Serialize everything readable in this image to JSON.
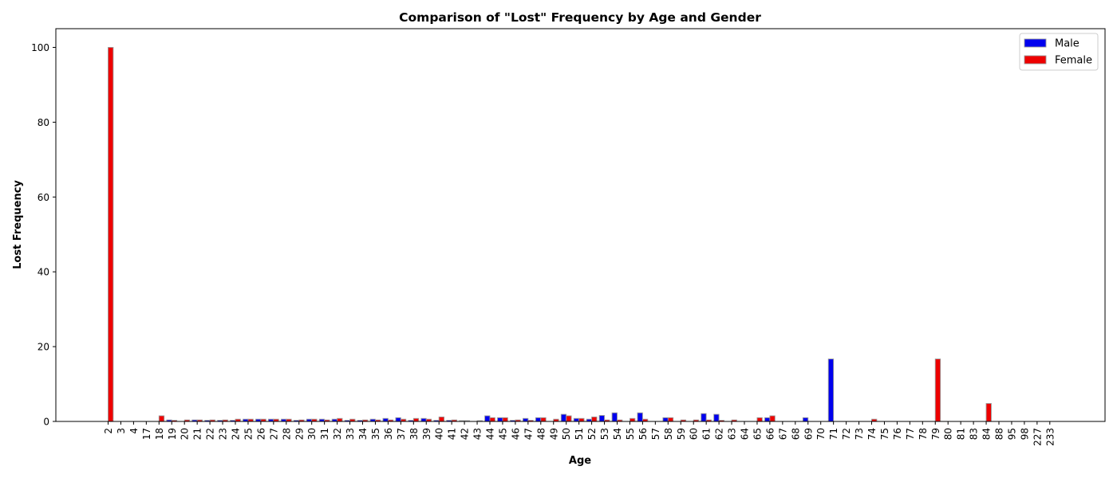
{
  "chart_data": {
    "type": "bar",
    "title": "Comparison of \"Lost\" Frequency by Age and Gender",
    "xlabel": "Age",
    "ylabel": "Lost Frequency",
    "ylim": [
      0,
      105
    ],
    "yticks": [
      0,
      20,
      40,
      60,
      80,
      100
    ],
    "grid": false,
    "legend": "top-right",
    "categories": [
      "2",
      "3",
      "4",
      "17",
      "18",
      "19",
      "20",
      "21",
      "22",
      "23",
      "24",
      "25",
      "26",
      "27",
      "28",
      "29",
      "30",
      "31",
      "32",
      "33",
      "34",
      "35",
      "36",
      "37",
      "38",
      "39",
      "40",
      "41",
      "42",
      "43",
      "44",
      "45",
      "46",
      "47",
      "48",
      "49",
      "50",
      "51",
      "52",
      "53",
      "54",
      "55",
      "56",
      "57",
      "58",
      "59",
      "60",
      "61",
      "62",
      "63",
      "64",
      "65",
      "66",
      "67",
      "68",
      "69",
      "70",
      "71",
      "72",
      "73",
      "74",
      "75",
      "76",
      "77",
      "78",
      "79",
      "80",
      "81",
      "83",
      "84",
      "88",
      "95",
      "98",
      "227",
      "233"
    ],
    "series": [
      {
        "name": "Male",
        "color": "#0000ee",
        "values": [
          0,
          0,
          0,
          0,
          0,
          0.4,
          0,
          0.4,
          0.3,
          0.3,
          0.3,
          0.6,
          0.6,
          0.6,
          0.6,
          0.3,
          0.6,
          0.6,
          0.6,
          0.3,
          0.3,
          0.6,
          0.8,
          1.0,
          0.3,
          0.8,
          0.3,
          0.3,
          0.2,
          0,
          1.5,
          1.0,
          0.3,
          0.8,
          1.0,
          0,
          1.9,
          0.8,
          0.6,
          1.6,
          2.3,
          0,
          2.3,
          0,
          1.0,
          0,
          0,
          2.1,
          1.9,
          0,
          0,
          0,
          1.0,
          0,
          0,
          1.0,
          0,
          16.7,
          0,
          0,
          0,
          0,
          0,
          0,
          0,
          0,
          0,
          0,
          0,
          0,
          0,
          0,
          0,
          0,
          0
        ]
      },
      {
        "name": "Female",
        "color": "#ee0000",
        "values": [
          100,
          0,
          0,
          0,
          1.5,
          0.3,
          0.4,
          0.4,
          0.4,
          0.4,
          0.6,
          0.6,
          0.6,
          0.6,
          0.6,
          0.4,
          0.6,
          0.4,
          0.8,
          0.6,
          0.4,
          0.4,
          0.4,
          0.6,
          0.8,
          0.6,
          1.2,
          0.4,
          0.2,
          0.2,
          1.0,
          1.0,
          0.4,
          0.3,
          1.0,
          0.6,
          1.5,
          0.8,
          1.2,
          0.4,
          0.4,
          0.8,
          0.6,
          0,
          1.0,
          0.4,
          0.4,
          0.4,
          0.3,
          0.4,
          0,
          1.0,
          1.5,
          0,
          0,
          0,
          0,
          0,
          0,
          0,
          0.6,
          0,
          0,
          0,
          0,
          16.7,
          0,
          0,
          0,
          4.8,
          0,
          0,
          0,
          0,
          0
        ]
      }
    ]
  }
}
